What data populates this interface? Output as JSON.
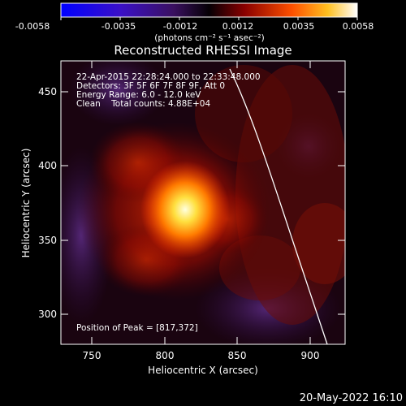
{
  "colorbar": {
    "tick_labels": [
      "-0.0058",
      "-0.0035",
      "-0.0012",
      "0.0012",
      "0.0035",
      "0.0058"
    ],
    "units": "(photons cm⁻² s⁻¹ asec⁻²)",
    "range": [
      -0.0058,
      0.0058
    ],
    "colormap": "blue-purple-black-red-orange-yellow-white"
  },
  "plot": {
    "title": "Reconstructed RHESSI Image",
    "xlabel": "Heliocentric X (arcsec)",
    "ylabel": "Heliocentric Y (arcsec)",
    "x_ticks": [
      "750",
      "800",
      "850",
      "900"
    ],
    "y_ticks": [
      "300",
      "350",
      "400",
      "450"
    ],
    "xlim": [
      731,
      925
    ],
    "ylim": [
      278,
      476
    ],
    "peak_x": 817,
    "peak_y": 372,
    "limb_color": "#ffffff"
  },
  "annotations": {
    "time_range": "22-Apr-2015 22:28:24.000 to 22:33:48.000",
    "detectors": "Detectors: 3F 5F 6F 7F 8F 9F, Att 0",
    "energy": "Energy Range: 6.0 - 12.0 keV",
    "method_counts": "Clean    Total counts: 4.88E+04",
    "peak": "Position of Peak = [817,372]"
  },
  "footer": {
    "timestamp": "20-May-2022 16:10"
  }
}
